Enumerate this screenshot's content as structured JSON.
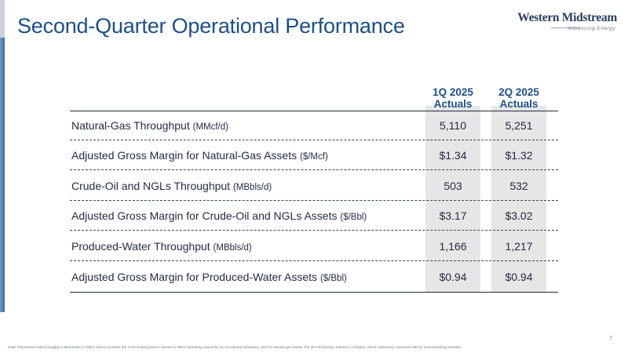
{
  "title": "Second-Quarter Operational Performance",
  "logo": {
    "name": "Western Midstream",
    "tagline": "Advancing Energy"
  },
  "table": {
    "columns": [
      {
        "line1": "1Q 2025",
        "line2": "Actuals"
      },
      {
        "line1": "2Q 2025",
        "line2": "Actuals"
      }
    ],
    "rows": [
      {
        "label": "Natural-Gas Throughput",
        "unit": "(MMcf/d)",
        "q1": "5,110",
        "q2": "5,251"
      },
      {
        "label": "Adjusted Gross Margin for Natural-Gas Assets",
        "unit": "($/Mcf)",
        "q1": "$1.34",
        "q2": "$1.32"
      },
      {
        "label": "Crude-Oil and NGLs Throughput",
        "unit": "(MBbls/d)",
        "q1": "503",
        "q2": "532"
      },
      {
        "label": "Adjusted Gross Margin for Crude-Oil and NGLs Assets",
        "unit": "($/Bbl)",
        "q1": "$3.17",
        "q2": "$3.02"
      },
      {
        "label": "Produced-Water Throughput",
        "unit": "(MBbls/d)",
        "q1": "1,166",
        "q2": "1,217"
      },
      {
        "label": "Adjusted Gross Margin for Produced-Water Assets",
        "unit": "($/Bbl)",
        "q1": "$0.94",
        "q2": "$0.94"
      }
    ]
  },
  "page_number": "7",
  "note": "Note: Represents total throughput attributable to WES, which excludes the 2.0% limited partner interest in WES Operating owned by an Occidental subsidiary, and for natural-gas assets, the 25% third-party interest in Chipeta, which collectively represent WES's noncontrolling interests.",
  "colors": {
    "accent": "#1c4f8a",
    "text": "#1f2a44",
    "column_shade": "#e6e6e6",
    "side_bar": "#4a79a8"
  }
}
